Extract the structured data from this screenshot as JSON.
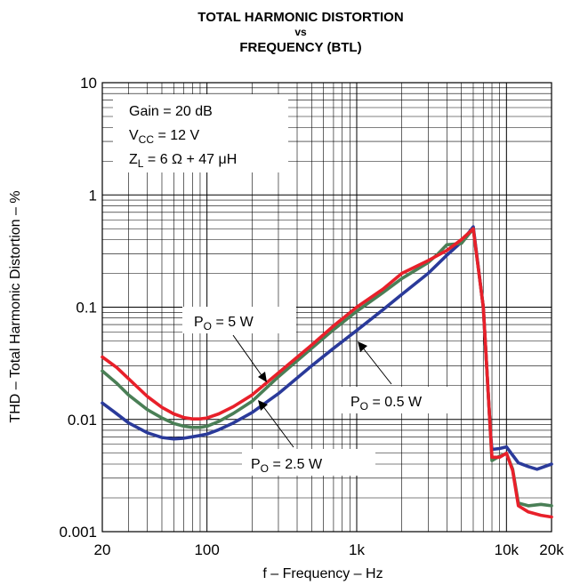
{
  "chart_data": {
    "type": "line",
    "title": [
      "TOTAL HARMONIC DISTORTION",
      "vs",
      "FREQUENCY (BTL)"
    ],
    "xlabel": "f – Frequency – Hz",
    "ylabel": "THD – Total Harmonic Distortion – %",
    "x_scale": "log",
    "y_scale": "log",
    "xlim": [
      20,
      20000
    ],
    "ylim": [
      0.001,
      10
    ],
    "grid": true,
    "x_ticks": [
      {
        "value": 20,
        "label": "20"
      },
      {
        "value": 100,
        "label": "100"
      },
      {
        "value": 1000,
        "label": "1k"
      },
      {
        "value": 10000,
        "label": "10k"
      },
      {
        "value": 20000,
        "label": "20k"
      }
    ],
    "y_ticks": [
      {
        "value": 0.001,
        "label": "0.001"
      },
      {
        "value": 0.01,
        "label": "0.01"
      },
      {
        "value": 0.1,
        "label": "0.1"
      },
      {
        "value": 1,
        "label": "1"
      },
      {
        "value": 10,
        "label": "10"
      }
    ],
    "conditions": {
      "gain": "Gain = 20 dB",
      "vcc_main": "V",
      "vcc_sub": "CC",
      "vcc_rest": " = 12 V",
      "zl_main": "Z",
      "zl_sub": "L",
      "zl_rest": " = 6 Ω + 47 μH"
    },
    "series": [
      {
        "label_main": "P",
        "label_sub": "O",
        "label_rest": " = 5 W",
        "color": "#e8202a",
        "x": [
          20,
          25,
          30,
          40,
          50,
          60,
          70,
          80,
          90,
          100,
          120,
          150,
          200,
          300,
          500,
          700,
          1000,
          1500,
          2000,
          3000,
          4000,
          5000,
          6000,
          7000,
          7800,
          8000,
          9000,
          10000,
          11000,
          12000,
          14000,
          17000,
          20000
        ],
        "y": [
          0.036,
          0.029,
          0.023,
          0.016,
          0.0128,
          0.0112,
          0.0104,
          0.0101,
          0.0101,
          0.0103,
          0.0112,
          0.013,
          0.0165,
          0.026,
          0.046,
          0.068,
          0.1,
          0.145,
          0.2,
          0.26,
          0.32,
          0.4,
          0.5,
          0.1,
          0.008,
          0.0046,
          0.0046,
          0.005,
          0.0035,
          0.0017,
          0.0015,
          0.0014,
          0.00135
        ]
      },
      {
        "label_main": "P",
        "label_sub": "O",
        "label_rest": " = 2.5 W",
        "color": "#4a7f56",
        "x": [
          20,
          25,
          30,
          40,
          50,
          60,
          70,
          80,
          90,
          100,
          120,
          150,
          200,
          300,
          500,
          700,
          1000,
          1500,
          2000,
          3000,
          3500,
          4000,
          5000,
          6000,
          7000,
          7800,
          8000,
          9000,
          10000,
          11000,
          12000,
          14000,
          17000,
          20000
        ],
        "y": [
          0.027,
          0.021,
          0.0165,
          0.0122,
          0.0103,
          0.0092,
          0.0087,
          0.0085,
          0.0085,
          0.0087,
          0.0096,
          0.0113,
          0.0145,
          0.024,
          0.043,
          0.063,
          0.092,
          0.135,
          0.18,
          0.25,
          0.3,
          0.36,
          0.37,
          0.5,
          0.1,
          0.008,
          0.0043,
          0.0047,
          0.005,
          0.0036,
          0.0018,
          0.0017,
          0.00175,
          0.0017
        ]
      },
      {
        "label_main": "P",
        "label_sub": "O",
        "label_rest": " = 0.5 W",
        "color": "#2a3a9a",
        "x": [
          20,
          25,
          30,
          40,
          50,
          60,
          70,
          80,
          90,
          100,
          120,
          150,
          200,
          300,
          500,
          700,
          1000,
          1500,
          2000,
          3000,
          4000,
          5000,
          6000,
          7000,
          7800,
          8000,
          9000,
          10000,
          11000,
          12000,
          14000,
          16000,
          20000
        ],
        "y": [
          0.014,
          0.0112,
          0.0093,
          0.0076,
          0.0069,
          0.0067,
          0.0068,
          0.007,
          0.0072,
          0.0074,
          0.0081,
          0.0093,
          0.0115,
          0.017,
          0.03,
          0.043,
          0.062,
          0.095,
          0.13,
          0.2,
          0.29,
          0.38,
          0.52,
          0.1,
          0.008,
          0.0054,
          0.0055,
          0.0057,
          0.0048,
          0.0041,
          0.0038,
          0.0036,
          0.004
        ]
      }
    ]
  }
}
